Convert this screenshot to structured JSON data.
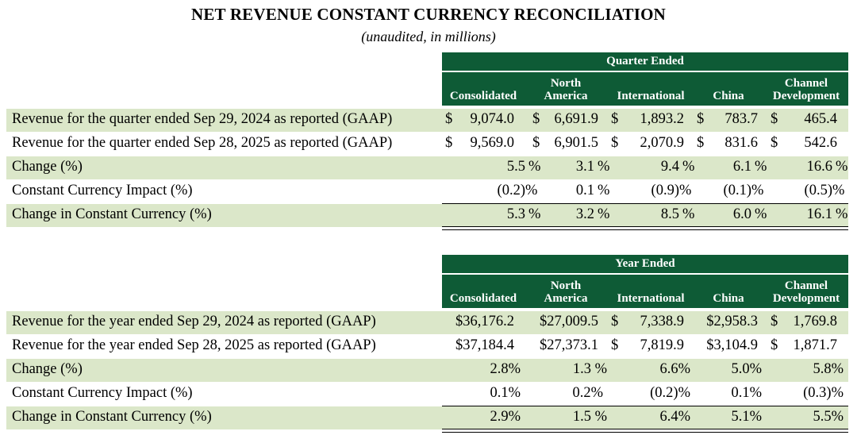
{
  "title": "NET REVENUE CONSTANT CURRENCY RECONCILIATION",
  "subtitle": "(unaudited, in millions)",
  "colors": {
    "header_bg": "#0e5b36",
    "row_shade": "#dbe7c9"
  },
  "columns": [
    {
      "line1": "",
      "line2": "Consolidated"
    },
    {
      "line1": "North",
      "line2": "America"
    },
    {
      "line1": "",
      "line2": "International"
    },
    {
      "line1": "",
      "line2": "China"
    },
    {
      "line1": "Channel",
      "line2": "Development"
    }
  ],
  "quarter": {
    "period_header": "Quarter Ended",
    "rows": [
      {
        "label": "Revenue for the quarter ended Sep 29, 2024 as reported (GAAP)",
        "type": "currency",
        "values": [
          "9,074.0",
          "6,691.9",
          "1,893.2",
          "783.7",
          "465.4"
        ]
      },
      {
        "label": "Revenue for the quarter ended Sep 28, 2025 as reported (GAAP)",
        "type": "currency",
        "values": [
          "9,569.0",
          "6,901.5",
          "2,070.9",
          "831.6",
          "542.6"
        ]
      },
      {
        "label": "Change (%)",
        "type": "percent",
        "values": [
          "5.5",
          "3.1",
          "9.4",
          "6.1",
          "16.6"
        ]
      },
      {
        "label": "Constant Currency Impact (%)",
        "type": "percent",
        "values": [
          "(0.2)",
          "0.1",
          "(0.9)",
          "(0.1)",
          "(0.5)"
        ]
      },
      {
        "label": "Change in Constant Currency (%)",
        "type": "percent",
        "values": [
          "5.3",
          "3.2",
          "8.5",
          "6.0",
          "16.1"
        ]
      }
    ]
  },
  "year": {
    "period_header": "Year Ended",
    "rows": [
      {
        "label": "Revenue for the year ended Sep 29, 2024 as reported (GAAP)",
        "type": "currency",
        "values": [
          "$36,176.2",
          "$27,009.5",
          "7,338.9",
          "$2,958.3",
          "1,769.8"
        ]
      },
      {
        "label": "Revenue for the year ended Sep 28, 2025 as reported (GAAP)",
        "type": "currency",
        "values": [
          "$37,184.4",
          "$27,373.1",
          "7,819.9",
          "$3,104.9",
          "1,871.7"
        ]
      },
      {
        "label": "Change (%)",
        "type": "percent",
        "values": [
          "2.8%",
          "1.3 %",
          "6.6%",
          "5.0%",
          "5.8%"
        ]
      },
      {
        "label": "Constant Currency Impact (%)",
        "type": "percent",
        "values": [
          "0.1%",
          "0.2%",
          "(0.2)%",
          "0.1%",
          "(0.3)%"
        ]
      },
      {
        "label": "Change in Constant Currency (%)",
        "type": "percent",
        "values": [
          "2.9%",
          "1.5 %",
          "6.4%",
          "5.1%",
          "5.5%"
        ]
      }
    ]
  },
  "currency_symbol": "$",
  "percent_symbol": "%"
}
